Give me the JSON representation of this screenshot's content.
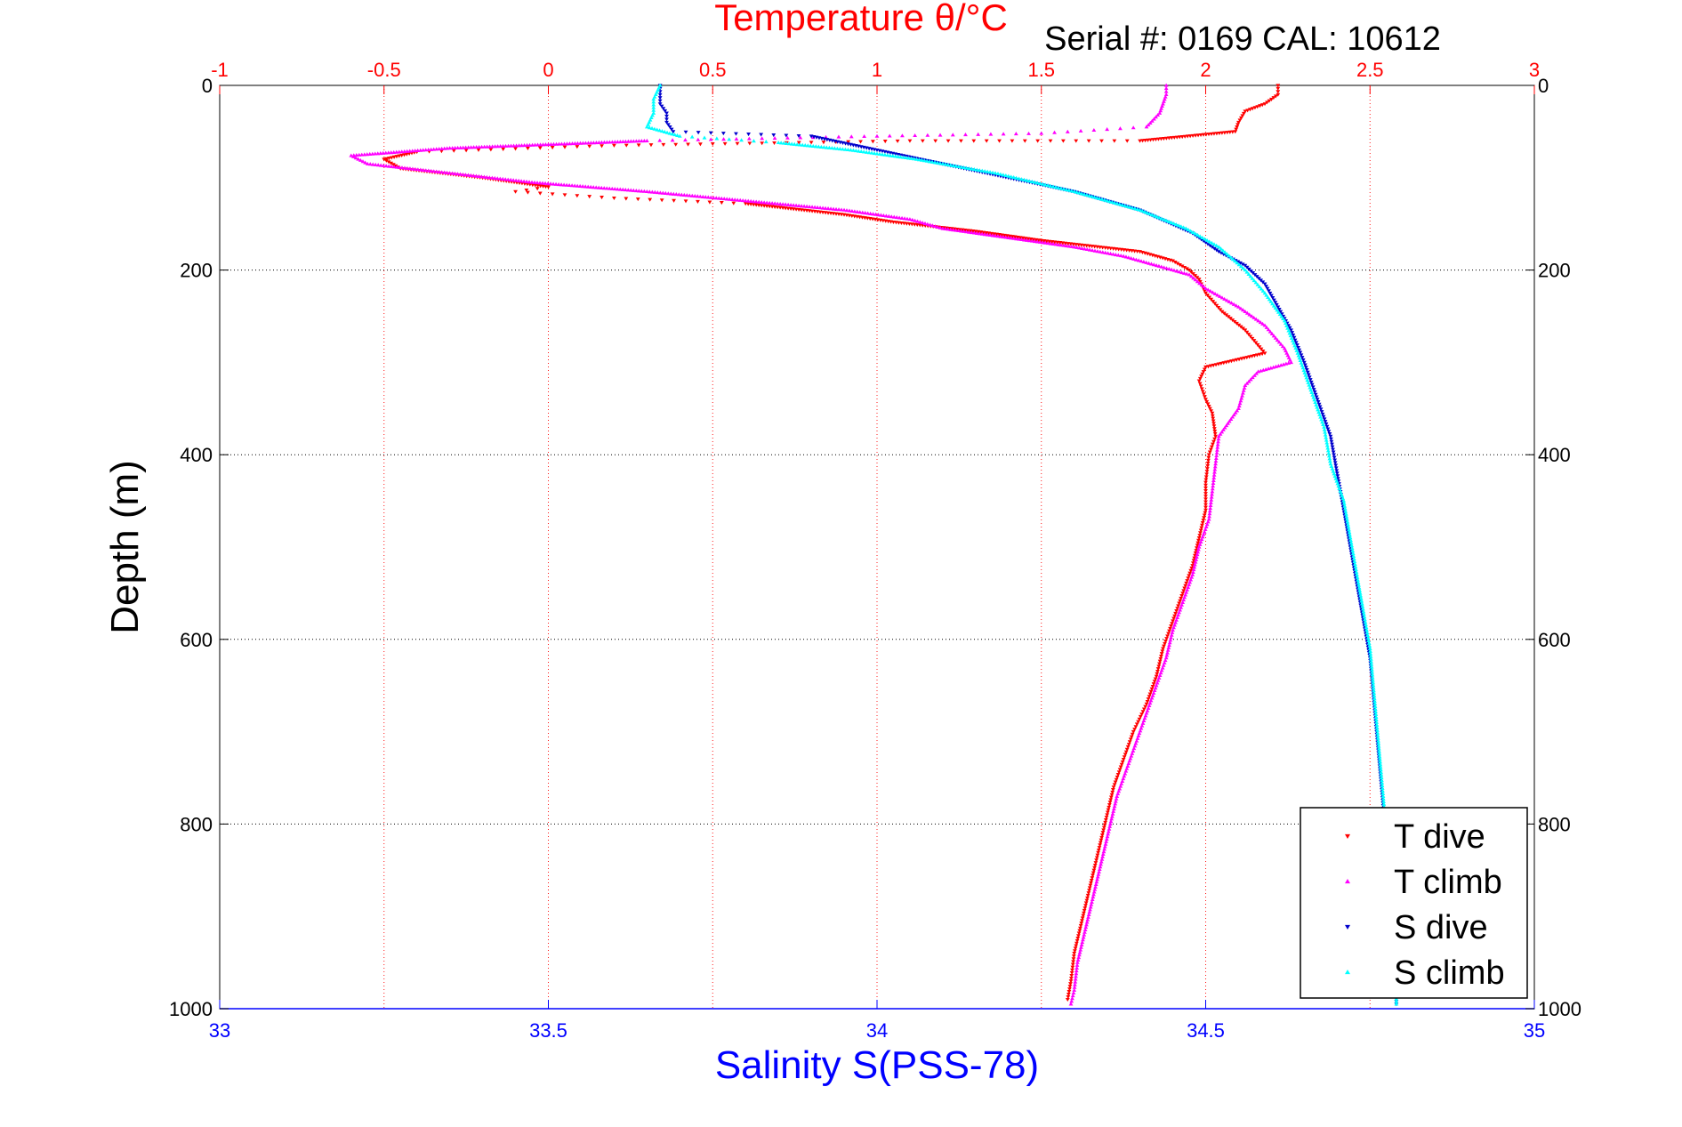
{
  "figure": {
    "top_title": "Temperature θ/°C",
    "serial_text": "Serial #: 0169 CAL: 10612",
    "ylabel": "Depth (m)",
    "xlabel_bottom": "Salinity S(PSS-78)"
  },
  "colors": {
    "temperature_axis": "#ff0000",
    "salinity_axis": "#0000ff",
    "t_dive": "#ff0000",
    "t_climb": "#ff00ff",
    "s_dive": "#0000cc",
    "s_climb": "#00ffff",
    "grid": "#000000",
    "axis": "#000000"
  },
  "legend": {
    "items": [
      {
        "label": "T dive",
        "color": "#ff0000",
        "marker": "triangle-down"
      },
      {
        "label": "T climb",
        "color": "#ff00ff",
        "marker": "triangle-up"
      },
      {
        "label": "S dive",
        "color": "#0000cc",
        "marker": "triangle-down"
      },
      {
        "label": "S climb",
        "color": "#00ffff",
        "marker": "triangle-up"
      }
    ]
  },
  "chart_data": {
    "type": "scatter",
    "title": "Temperature θ/°C",
    "xlabel": "Salinity S(PSS-78)",
    "ylabel": "Depth (m)",
    "x_bottom": {
      "label": "Salinity S(PSS-78)",
      "lim": [
        33,
        35
      ],
      "ticks": [
        33,
        33.5,
        34,
        34.5,
        35
      ],
      "tick_labels": [
        "33",
        "33.5",
        "34",
        "34.5",
        "35"
      ]
    },
    "x_top": {
      "label": "Temperature θ/°C",
      "lim": [
        -1,
        3
      ],
      "ticks": [
        -1,
        -0.5,
        0,
        0.5,
        1,
        1.5,
        2,
        2.5,
        3
      ],
      "tick_labels": [
        "-1",
        "-0.5",
        "0",
        "0.5",
        "1",
        "1.5",
        "2",
        "2.5",
        "3"
      ]
    },
    "y": {
      "label": "Depth (m)",
      "lim": [
        0,
        1000
      ],
      "reversed": true,
      "ticks": [
        0,
        200,
        400,
        600,
        800,
        1000
      ],
      "tick_labels": [
        "0",
        "200",
        "400",
        "600",
        "800",
        "1000"
      ]
    },
    "grid": true,
    "legend_position": "bottom-right",
    "series": [
      {
        "name": "T dive",
        "axis": "temperature",
        "marker": "triangle-down",
        "points": [
          [
            2.22,
            0
          ],
          [
            2.22,
            10
          ],
          [
            2.18,
            20
          ],
          [
            2.12,
            28
          ],
          [
            2.1,
            40
          ],
          [
            2.09,
            50
          ],
          [
            1.8,
            60
          ],
          [
            1.1,
            60
          ],
          [
            0.2,
            65
          ],
          [
            -0.4,
            72
          ],
          [
            -0.5,
            80
          ],
          [
            -0.45,
            90
          ],
          [
            -0.2,
            100
          ],
          [
            0.0,
            110
          ],
          [
            -0.1,
            115
          ],
          [
            0.2,
            122
          ],
          [
            0.6,
            128
          ],
          [
            0.9,
            140
          ],
          [
            1.05,
            148
          ],
          [
            1.3,
            158
          ],
          [
            1.5,
            168
          ],
          [
            1.8,
            180
          ],
          [
            1.9,
            190
          ],
          [
            1.95,
            200
          ],
          [
            1.98,
            210
          ],
          [
            2.0,
            225
          ],
          [
            2.05,
            245
          ],
          [
            2.12,
            265
          ],
          [
            2.18,
            290
          ],
          [
            2.0,
            305
          ],
          [
            1.98,
            320
          ],
          [
            2.0,
            340
          ],
          [
            2.02,
            355
          ],
          [
            2.03,
            380
          ],
          [
            2.01,
            400
          ],
          [
            2.0,
            430
          ],
          [
            2.0,
            460
          ],
          [
            1.98,
            490
          ],
          [
            1.96,
            520
          ],
          [
            1.93,
            550
          ],
          [
            1.9,
            580
          ],
          [
            1.87,
            610
          ],
          [
            1.85,
            640
          ],
          [
            1.82,
            670
          ],
          [
            1.78,
            700
          ],
          [
            1.75,
            730
          ],
          [
            1.72,
            760
          ],
          [
            1.7,
            790
          ],
          [
            1.68,
            820
          ],
          [
            1.66,
            850
          ],
          [
            1.64,
            880
          ],
          [
            1.62,
            910
          ],
          [
            1.6,
            940
          ],
          [
            1.59,
            970
          ],
          [
            1.58,
            990
          ]
        ]
      },
      {
        "name": "T climb",
        "axis": "temperature",
        "marker": "triangle-up",
        "points": [
          [
            1.88,
            0
          ],
          [
            1.88,
            10
          ],
          [
            1.87,
            20
          ],
          [
            1.86,
            30
          ],
          [
            1.82,
            45
          ],
          [
            1.5,
            52
          ],
          [
            1.0,
            55
          ],
          [
            0.3,
            60
          ],
          [
            -0.3,
            68
          ],
          [
            -0.6,
            76
          ],
          [
            -0.55,
            85
          ],
          [
            -0.3,
            95
          ],
          [
            -0.05,
            105
          ],
          [
            0.3,
            115
          ],
          [
            0.6,
            125
          ],
          [
            0.9,
            135
          ],
          [
            1.1,
            145
          ],
          [
            1.2,
            155
          ],
          [
            1.4,
            165
          ],
          [
            1.6,
            175
          ],
          [
            1.75,
            185
          ],
          [
            1.85,
            195
          ],
          [
            1.95,
            205
          ],
          [
            2.0,
            220
          ],
          [
            2.1,
            240
          ],
          [
            2.18,
            260
          ],
          [
            2.24,
            285
          ],
          [
            2.26,
            300
          ],
          [
            2.16,
            310
          ],
          [
            2.12,
            325
          ],
          [
            2.1,
            350
          ],
          [
            2.04,
            380
          ],
          [
            2.03,
            410
          ],
          [
            2.02,
            440
          ],
          [
            2.01,
            470
          ],
          [
            1.98,
            500
          ],
          [
            1.96,
            530
          ],
          [
            1.93,
            560
          ],
          [
            1.9,
            590
          ],
          [
            1.88,
            620
          ],
          [
            1.85,
            650
          ],
          [
            1.82,
            680
          ],
          [
            1.79,
            710
          ],
          [
            1.76,
            740
          ],
          [
            1.73,
            770
          ],
          [
            1.71,
            800
          ],
          [
            1.69,
            830
          ],
          [
            1.67,
            860
          ],
          [
            1.65,
            890
          ],
          [
            1.63,
            920
          ],
          [
            1.61,
            950
          ],
          [
            1.6,
            980
          ],
          [
            1.59,
            995
          ]
        ]
      },
      {
        "name": "S dive",
        "axis": "salinity",
        "marker": "triangle-down",
        "points": [
          [
            33.67,
            0
          ],
          [
            33.67,
            10
          ],
          [
            33.67,
            20
          ],
          [
            33.68,
            30
          ],
          [
            33.68,
            40
          ],
          [
            33.69,
            50
          ],
          [
            33.9,
            55
          ],
          [
            34.0,
            70
          ],
          [
            34.1,
            85
          ],
          [
            34.2,
            100
          ],
          [
            34.3,
            115
          ],
          [
            34.4,
            135
          ],
          [
            34.48,
            160
          ],
          [
            34.52,
            180
          ],
          [
            34.56,
            195
          ],
          [
            34.59,
            215
          ],
          [
            34.61,
            240
          ],
          [
            34.63,
            265
          ],
          [
            34.65,
            300
          ],
          [
            34.67,
            340
          ],
          [
            34.69,
            380
          ],
          [
            34.7,
            420
          ],
          [
            34.71,
            460
          ],
          [
            34.72,
            500
          ],
          [
            34.73,
            540
          ],
          [
            34.74,
            580
          ],
          [
            34.75,
            620
          ],
          [
            34.755,
            660
          ],
          [
            34.76,
            700
          ],
          [
            34.765,
            740
          ],
          [
            34.77,
            780
          ],
          [
            34.775,
            820
          ],
          [
            34.78,
            860
          ],
          [
            34.785,
            900
          ],
          [
            34.79,
            940
          ],
          [
            34.79,
            980
          ],
          [
            34.79,
            995
          ]
        ]
      },
      {
        "name": "S climb",
        "axis": "salinity",
        "marker": "triangle-up",
        "points": [
          [
            33.67,
            0
          ],
          [
            33.66,
            15
          ],
          [
            33.66,
            30
          ],
          [
            33.65,
            45
          ],
          [
            33.7,
            55
          ],
          [
            33.85,
            62
          ],
          [
            33.96,
            70
          ],
          [
            34.06,
            80
          ],
          [
            34.18,
            95
          ],
          [
            34.3,
            115
          ],
          [
            34.4,
            135
          ],
          [
            34.47,
            155
          ],
          [
            34.52,
            175
          ],
          [
            34.56,
            200
          ],
          [
            34.59,
            225
          ],
          [
            34.62,
            255
          ],
          [
            34.64,
            290
          ],
          [
            34.66,
            330
          ],
          [
            34.68,
            370
          ],
          [
            34.69,
            410
          ],
          [
            34.71,
            450
          ],
          [
            34.72,
            490
          ],
          [
            34.73,
            530
          ],
          [
            34.74,
            570
          ],
          [
            34.75,
            610
          ],
          [
            34.755,
            650
          ],
          [
            34.76,
            690
          ],
          [
            34.765,
            730
          ],
          [
            34.77,
            770
          ],
          [
            34.775,
            810
          ],
          [
            34.78,
            850
          ],
          [
            34.785,
            890
          ],
          [
            34.79,
            930
          ],
          [
            34.79,
            970
          ],
          [
            34.79,
            995
          ]
        ]
      }
    ]
  }
}
